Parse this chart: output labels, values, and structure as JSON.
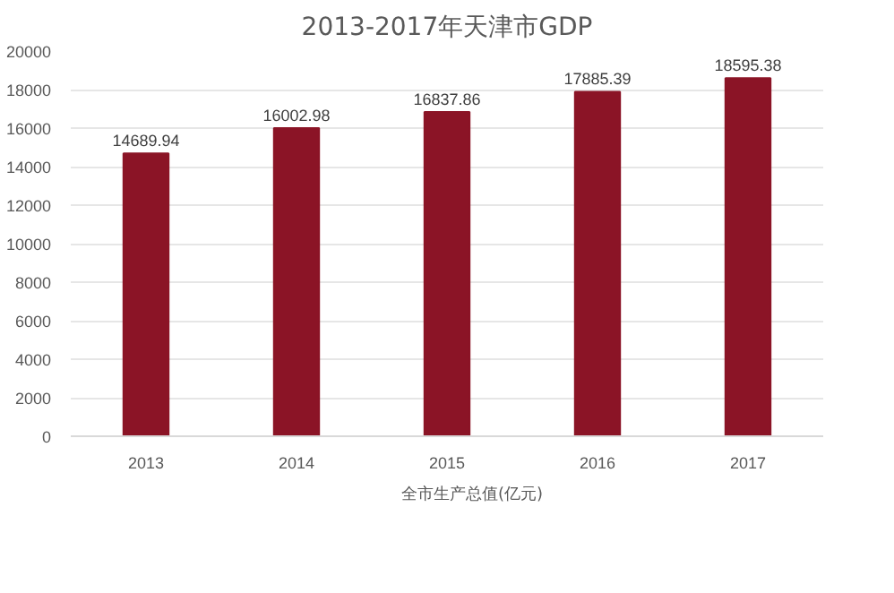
{
  "chart_data": {
    "type": "bar",
    "title": "2013-2017年天津市GDP",
    "categories": [
      "2013",
      "2014",
      "2015",
      "2016",
      "2017"
    ],
    "series": [
      {
        "name": "全市生产总值(亿元)",
        "color": "#8b1426",
        "values": [
          14689.94,
          16002.98,
          16837.86,
          17885.39,
          18595.38
        ]
      }
    ],
    "ylim": [
      0,
      20000
    ],
    "yticks": [
      0,
      2000,
      4000,
      6000,
      8000,
      10000,
      12000,
      14000,
      16000,
      18000,
      20000
    ],
    "grid": "y",
    "legend": "bottom",
    "data_labels": true
  }
}
